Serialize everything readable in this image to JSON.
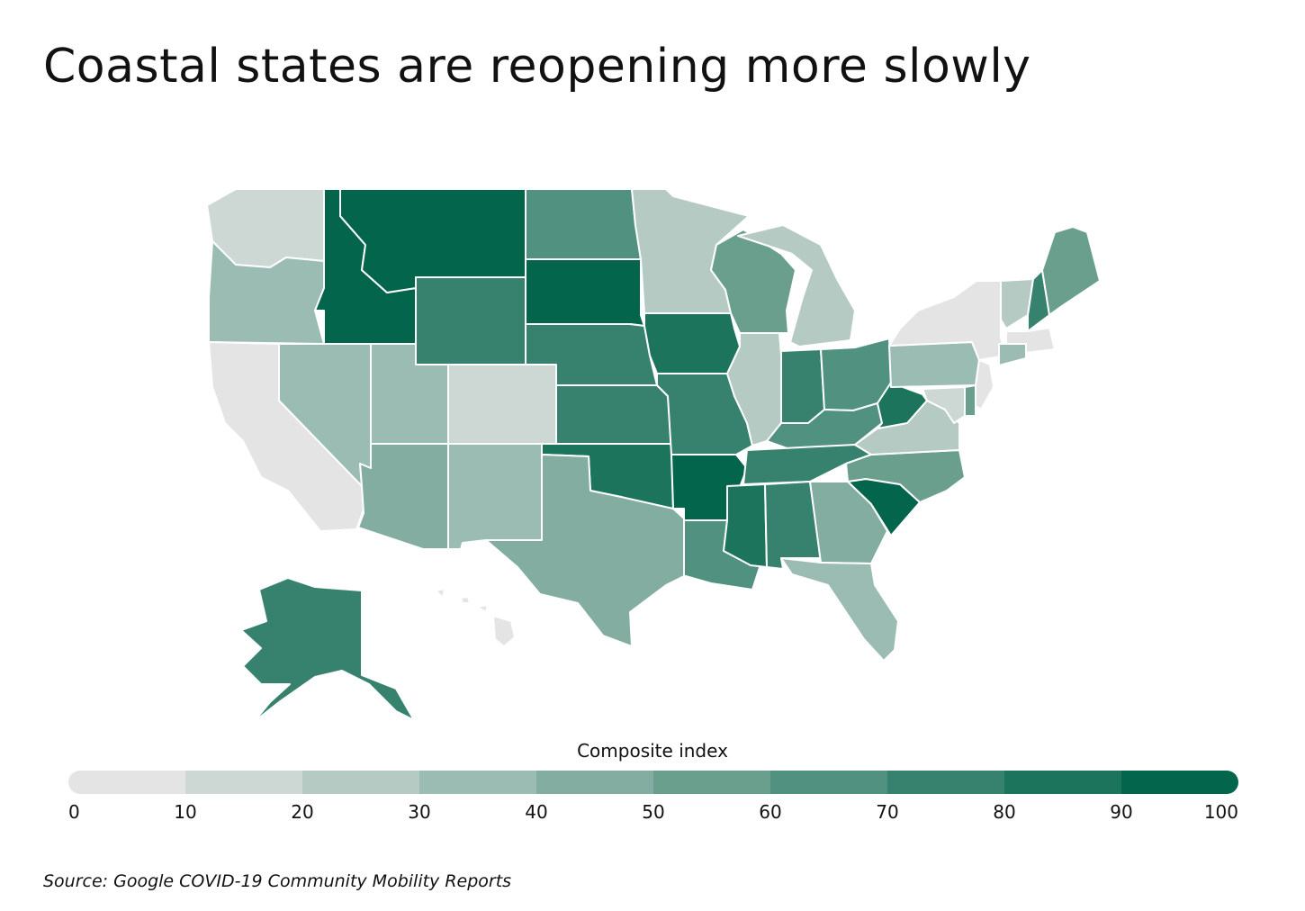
{
  "title": "Coastal states are reopening more slowly",
  "source": "Source:  Google COVID-19 Community Mobility Reports",
  "legend": {
    "title": "Composite index",
    "ticks": [
      "0",
      "10",
      "20",
      "30",
      "40",
      "50",
      "60",
      "70",
      "80",
      "90",
      "100"
    ],
    "colors": [
      "#e4e4e4",
      "#cdd8d4",
      "#b4cac3",
      "#9bbcb2",
      "#83ada0",
      "#6a9f8e",
      "#519180",
      "#37826e",
      "#1d745d",
      "#03664c"
    ]
  },
  "states": [
    {
      "id": "WA",
      "bin": 1
    },
    {
      "id": "OR",
      "bin": 3
    },
    {
      "id": "CA",
      "bin": 0
    },
    {
      "id": "NV",
      "bin": 3
    },
    {
      "id": "ID",
      "bin": 9
    },
    {
      "id": "MT",
      "bin": 9
    },
    {
      "id": "WY",
      "bin": 7
    },
    {
      "id": "UT",
      "bin": 3
    },
    {
      "id": "AZ",
      "bin": 4
    },
    {
      "id": "CO",
      "bin": 1
    },
    {
      "id": "NM",
      "bin": 3
    },
    {
      "id": "ND",
      "bin": 6
    },
    {
      "id": "SD",
      "bin": 9
    },
    {
      "id": "NE",
      "bin": 7
    },
    {
      "id": "KS",
      "bin": 7
    },
    {
      "id": "OK",
      "bin": 8
    },
    {
      "id": "TX",
      "bin": 4
    },
    {
      "id": "MN",
      "bin": 2
    },
    {
      "id": "IA",
      "bin": 8
    },
    {
      "id": "MO",
      "bin": 7
    },
    {
      "id": "AR",
      "bin": 9
    },
    {
      "id": "LA",
      "bin": 6
    },
    {
      "id": "WI",
      "bin": 5
    },
    {
      "id": "IL",
      "bin": 2
    },
    {
      "id": "MI",
      "bin": 2
    },
    {
      "id": "IN",
      "bin": 7
    },
    {
      "id": "OH",
      "bin": 6
    },
    {
      "id": "KY",
      "bin": 6
    },
    {
      "id": "TN",
      "bin": 7
    },
    {
      "id": "MS",
      "bin": 8
    },
    {
      "id": "AL",
      "bin": 7
    },
    {
      "id": "GA",
      "bin": 4
    },
    {
      "id": "FL",
      "bin": 3
    },
    {
      "id": "SC",
      "bin": 9
    },
    {
      "id": "NC",
      "bin": 5
    },
    {
      "id": "VA",
      "bin": 2
    },
    {
      "id": "WV",
      "bin": 8
    },
    {
      "id": "PA",
      "bin": 3
    },
    {
      "id": "NY",
      "bin": 0
    },
    {
      "id": "VT",
      "bin": 2
    },
    {
      "id": "NH",
      "bin": 7
    },
    {
      "id": "ME",
      "bin": 5
    },
    {
      "id": "MA",
      "bin": 0
    },
    {
      "id": "CT",
      "bin": 3
    },
    {
      "id": "NJ",
      "bin": 0
    },
    {
      "id": "DE",
      "bin": 5
    },
    {
      "id": "MD",
      "bin": 1
    },
    {
      "id": "AK",
      "bin": 7
    },
    {
      "id": "HI",
      "bin": 0
    }
  ]
}
